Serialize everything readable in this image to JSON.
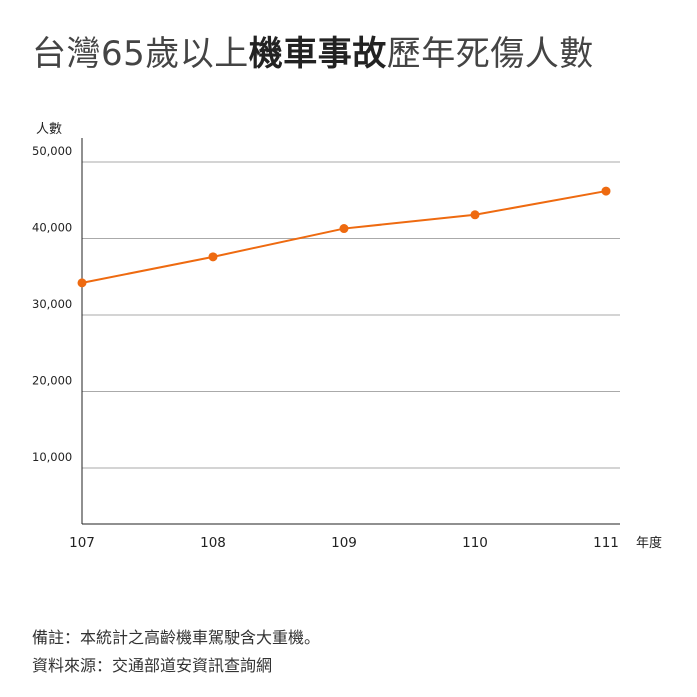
{
  "title": {
    "part1": "台灣65歲以上",
    "highlight": "機車事故",
    "part2": "歷年死傷人數"
  },
  "chart_data": {
    "type": "line",
    "title": "台灣65歲以上機車事故歷年死傷人數",
    "xlabel": "年度",
    "ylabel": "人數",
    "categories": [
      "107",
      "108",
      "109",
      "110",
      "111"
    ],
    "series": [
      {
        "values": [
          34200,
          37600,
          41300,
          43100,
          46200
        ]
      }
    ],
    "ylim": [
      0,
      55000
    ],
    "yticks": [
      10000,
      20000,
      30000,
      40000,
      50000
    ],
    "ytick_labels": [
      "10,000",
      "20,000",
      "30,000",
      "40,000",
      "50,000"
    ],
    "grid": true,
    "line_color": "#ee6a10"
  },
  "notes": {
    "note": "備註：本統計之高齡機車駕駛含大重機。",
    "source": "資料來源：交通部道安資訊查詢網"
  }
}
